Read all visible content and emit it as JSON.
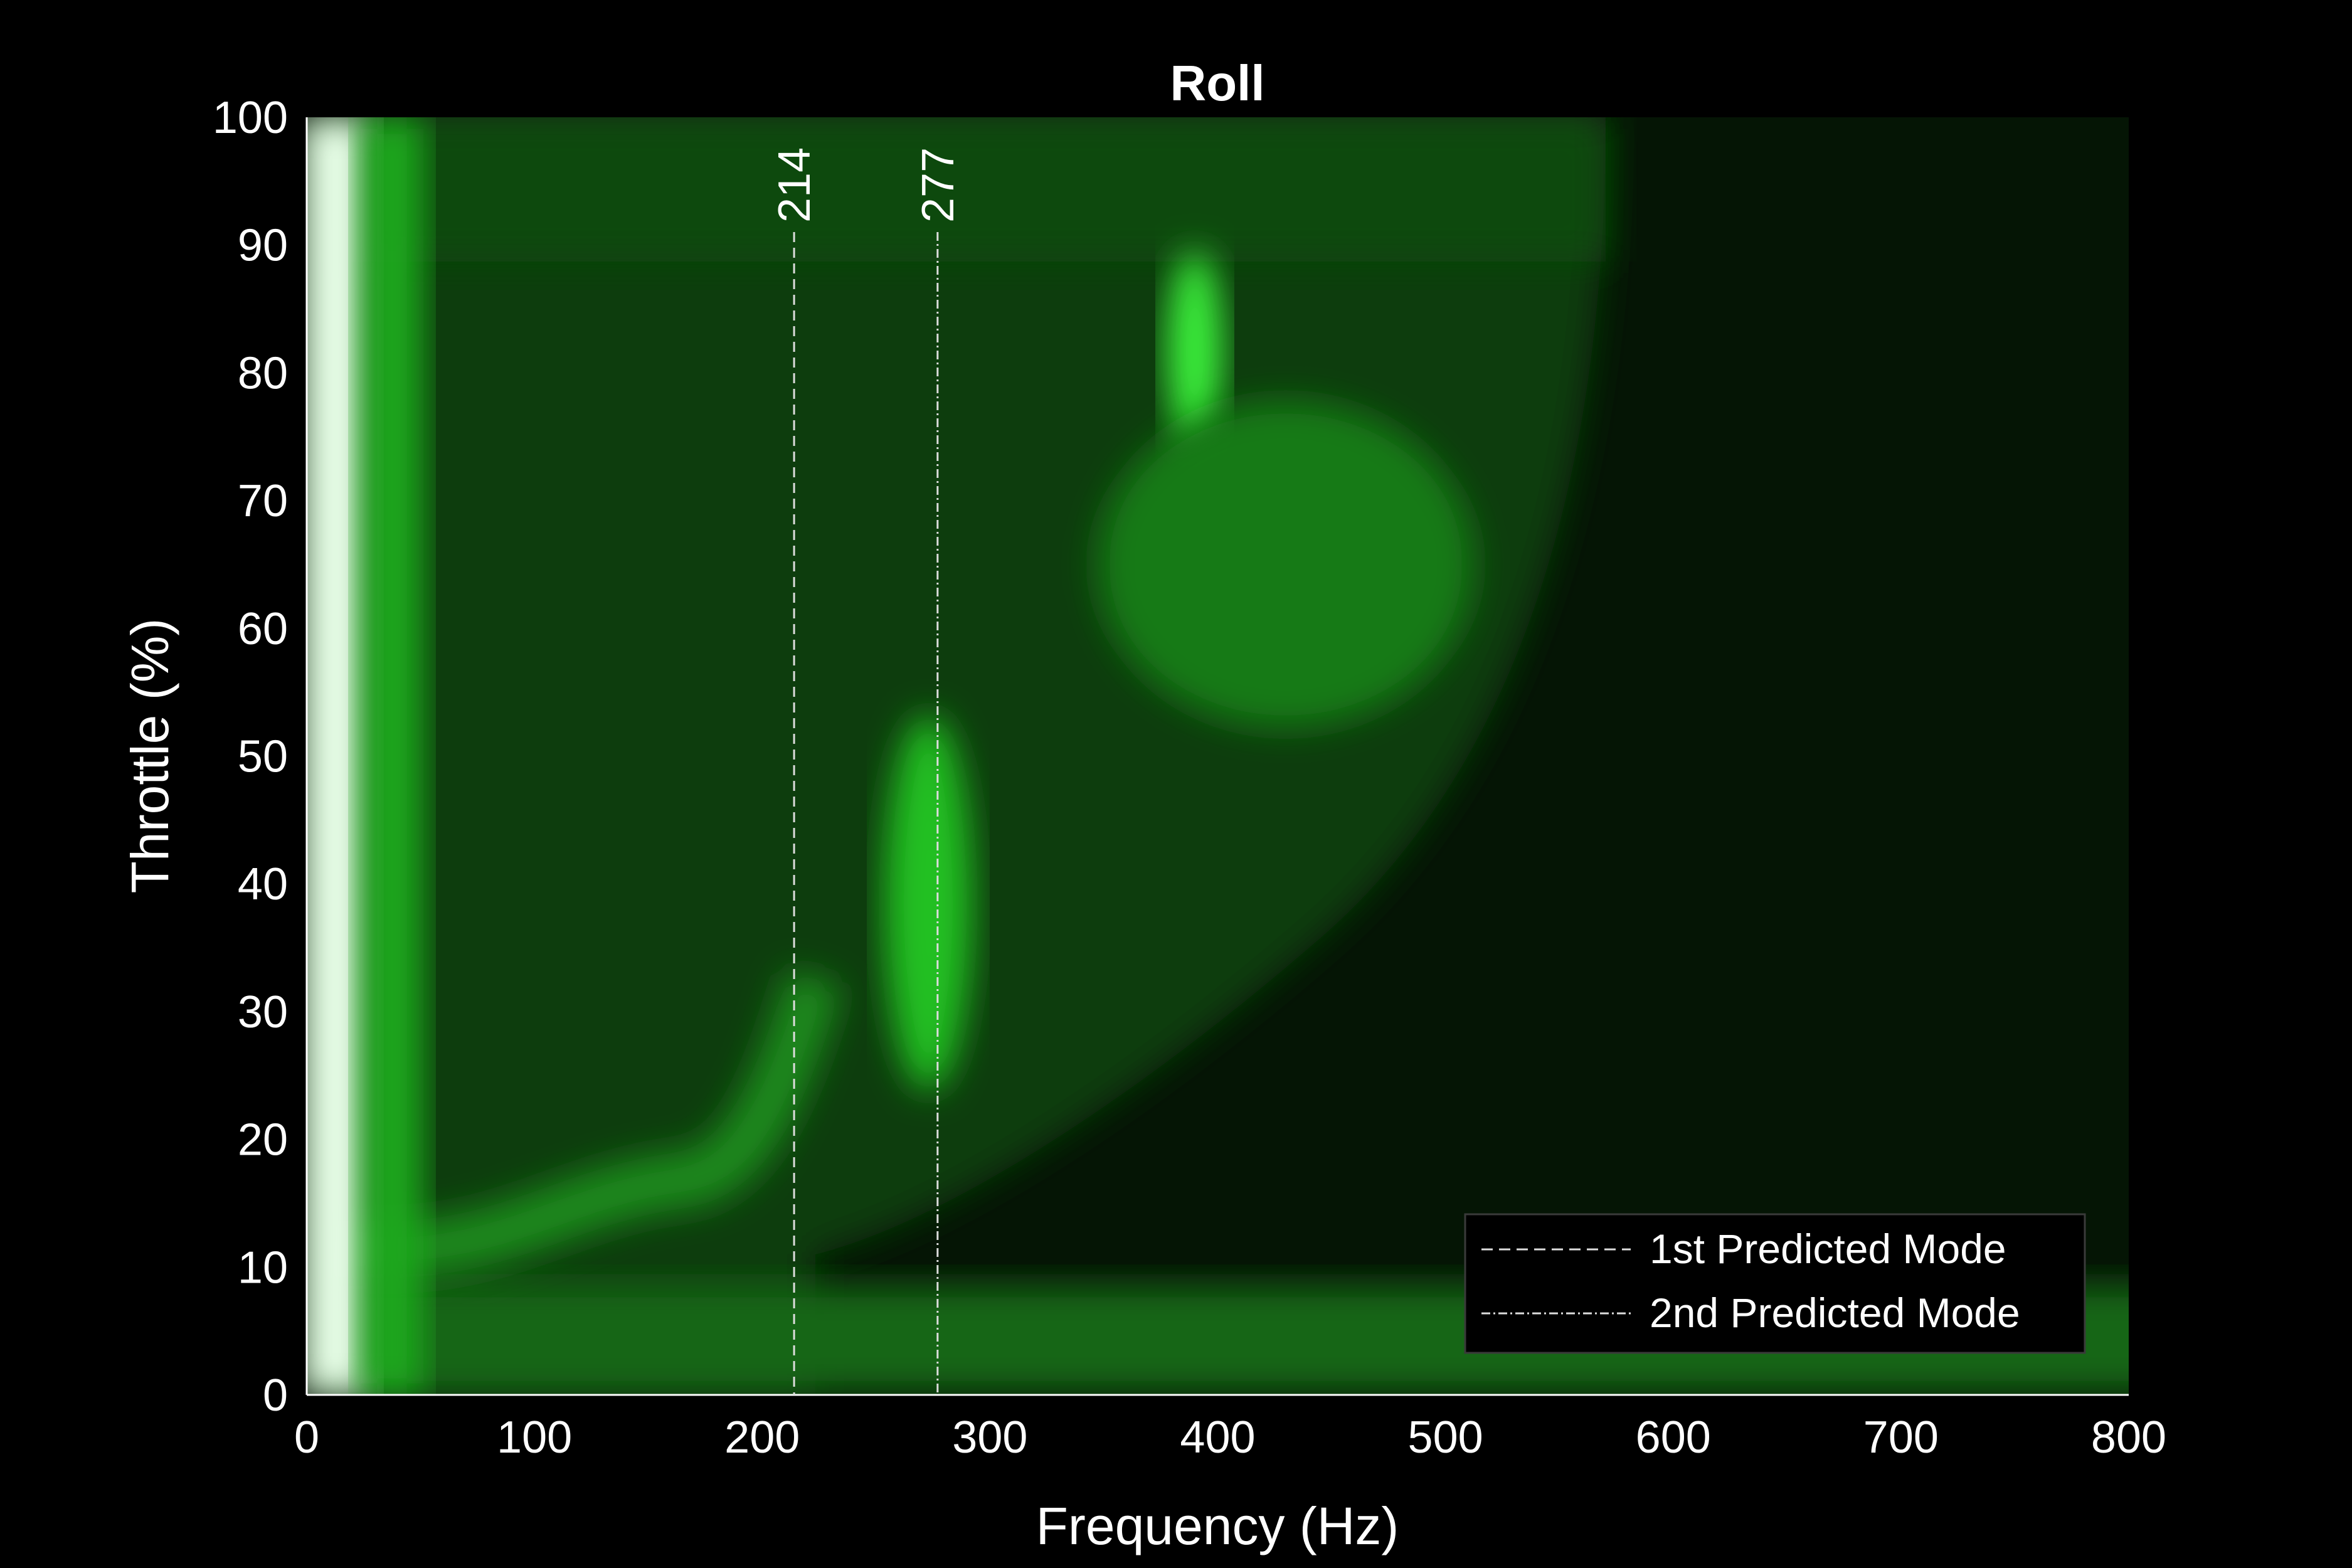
{
  "chart_data": {
    "type": "heatmap",
    "title": "Roll",
    "xlabel": "Frequency (Hz)",
    "ylabel": "Throttle (%)",
    "xlim": [
      0,
      800
    ],
    "ylim": [
      0,
      100
    ],
    "x_ticks": [
      0,
      100,
      200,
      300,
      400,
      500,
      600,
      700,
      800
    ],
    "y_ticks": [
      0,
      10,
      20,
      30,
      40,
      50,
      60,
      70,
      80,
      90,
      100
    ],
    "colormap": [
      "#000000",
      "#0a3a0a",
      "#1fa81f",
      "#2ee82e",
      "#ffffff"
    ],
    "background_color": "#000000",
    "grid": false,
    "legend_position": "lower-right",
    "intensity_features": [
      {
        "desc": "low-frequency saturated band",
        "x": [
          0,
          30
        ],
        "y": [
          0,
          100
        ],
        "level": 1.0
      },
      {
        "desc": "low-throttle band",
        "x": [
          30,
          570
        ],
        "y": [
          0,
          8
        ],
        "level": 0.55
      },
      {
        "desc": "high-throttle band",
        "x": [
          30,
          570
        ],
        "y": [
          90,
          100
        ],
        "level": 0.35
      },
      {
        "desc": "mode ridge",
        "x": [
          260,
          300
        ],
        "y": [
          25,
          50
        ],
        "level": 0.7
      },
      {
        "desc": "upper ridge",
        "x": [
          380,
          400
        ],
        "y": [
          75,
          88
        ],
        "level": 0.75
      }
    ],
    "predicted_modes": [
      {
        "name": "1st Predicted Mode",
        "frequency": 214,
        "label": "214",
        "style": "dashed"
      },
      {
        "name": "2nd Predicted Mode",
        "frequency": 277,
        "label": "277",
        "style": "dash-dot"
      }
    ]
  }
}
